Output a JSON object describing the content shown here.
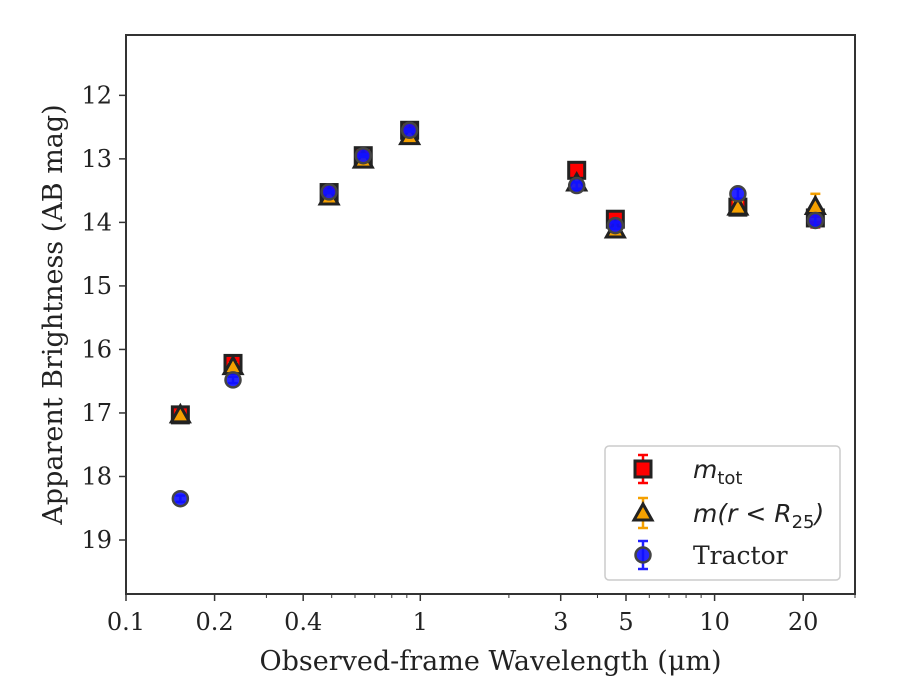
{
  "chart_data": {
    "type": "scatter",
    "xscale": "log",
    "yinverted": true,
    "xlim": [
      0.1,
      30
    ],
    "ylim": [
      19.85,
      11.05
    ],
    "xticks": [
      0.1,
      0.2,
      0.4,
      1,
      3,
      5,
      10,
      20
    ],
    "xtick_labels": [
      "0.1",
      "0.2",
      "0.4",
      "1",
      "3",
      "5",
      "10",
      "20"
    ],
    "yticks": [
      12,
      13,
      14,
      15,
      16,
      17,
      18,
      19
    ],
    "ytick_labels": [
      "12",
      "13",
      "14",
      "15",
      "16",
      "17",
      "18",
      "19"
    ],
    "xlabel": "Observed-frame Wavelength (μm)",
    "ylabel": "Apparent Brightness (AB mag)",
    "legend_position": "lower-right",
    "grid": false,
    "series": [
      {
        "legend": "m_tot",
        "legend_base": "m",
        "legend_sub": "tot",
        "marker": "square",
        "face": "#ff0000",
        "edge": "#222222",
        "errcolor": "#ff0000",
        "x": [
          0.153,
          0.231,
          0.49,
          0.64,
          0.92,
          3.4,
          4.6,
          12.0,
          22.0
        ],
        "y": [
          17.03,
          16.22,
          13.53,
          12.95,
          12.55,
          13.18,
          13.95,
          13.76,
          13.93
        ],
        "yerr": [
          0.05,
          0.05,
          0.02,
          0.02,
          0.02,
          0.05,
          0.05,
          0.08,
          0.15
        ]
      },
      {
        "legend": "m(r < R25)",
        "legend_base": "m(r < R",
        "legend_sub": "25",
        "legend_tail": ")",
        "marker": "triangle",
        "face": "#f5a000",
        "edge": "#222222",
        "errcolor": "#f5a000",
        "x": [
          0.153,
          0.231,
          0.49,
          0.64,
          0.92,
          3.4,
          4.6,
          12.0,
          22.0
        ],
        "y": [
          17.03,
          16.27,
          13.6,
          13.02,
          12.65,
          13.38,
          14.12,
          13.76,
          13.75
        ],
        "yerr": [
          0.05,
          0.05,
          0.02,
          0.02,
          0.02,
          0.05,
          0.05,
          0.08,
          0.2
        ]
      },
      {
        "legend": "Tractor",
        "marker": "circle",
        "face": "#1010ff",
        "edge": "#444444",
        "errcolor": "#2020ff",
        "x": [
          0.153,
          0.231,
          0.49,
          0.64,
          0.92,
          3.4,
          4.6,
          12.0,
          22.0
        ],
        "y": [
          18.35,
          16.48,
          13.52,
          12.95,
          12.55,
          13.42,
          14.05,
          13.55,
          13.97
        ],
        "yerr": [
          0.05,
          0.05,
          0.02,
          0.02,
          0.02,
          0.05,
          0.05,
          0.08,
          0.1
        ]
      }
    ]
  }
}
